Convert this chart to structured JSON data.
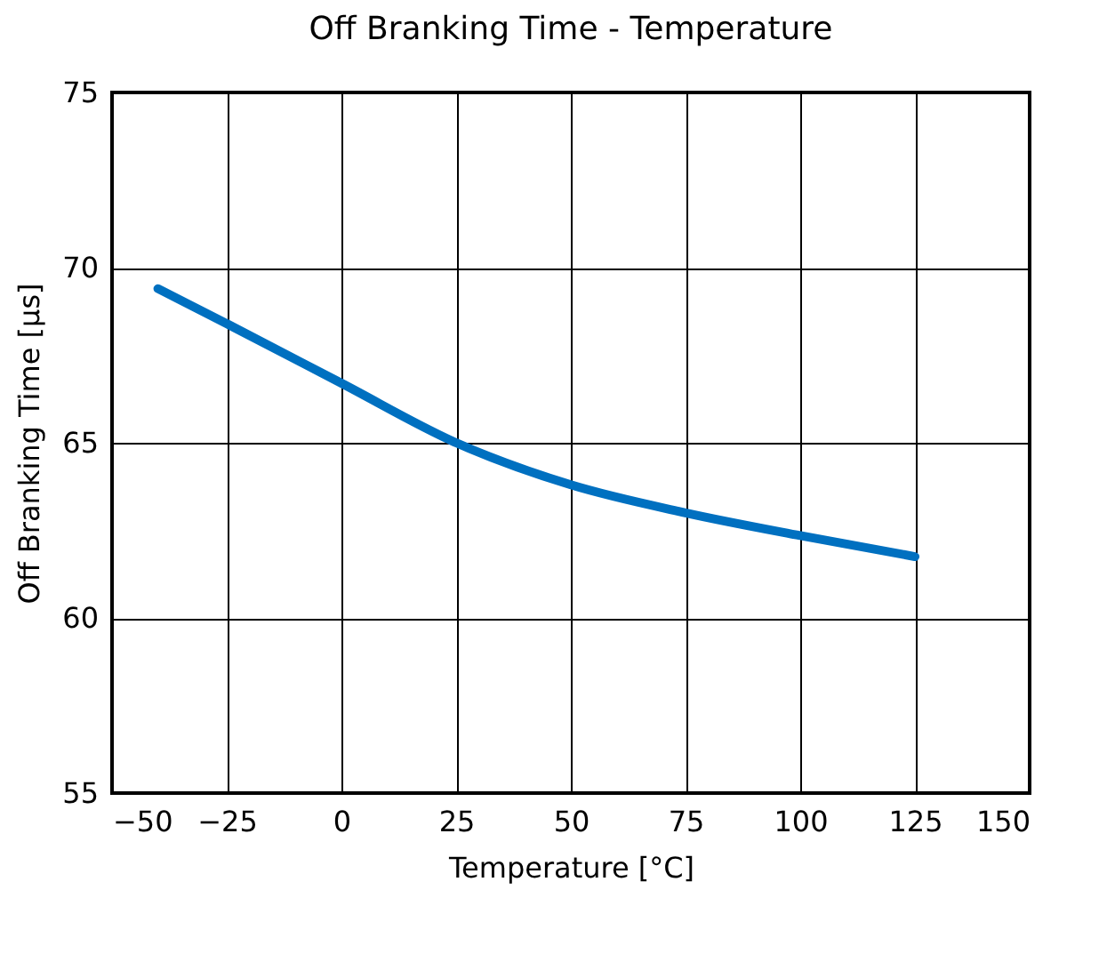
{
  "chart_data": {
    "type": "line",
    "title": "Off Branking Time - Temperature",
    "xlabel": "Temperature [°C]",
    "ylabel": "Off Branking Time [μs]",
    "x": [
      -40,
      -25,
      0,
      25,
      50,
      75,
      100,
      125
    ],
    "series": [
      {
        "color": "#0070c0",
        "values": [
          69.4,
          68.4,
          66.7,
          65.0,
          63.8,
          63.0,
          62.35,
          61.75
        ]
      }
    ],
    "xlim": [
      -50,
      150
    ],
    "xticks": [
      -50,
      -25,
      0,
      25,
      50,
      75,
      100,
      125,
      150
    ],
    "ylim": [
      55,
      75
    ],
    "yticks": [
      55,
      60,
      65,
      70,
      75
    ],
    "grid": true,
    "marker": "none",
    "line_style": "solid"
  }
}
